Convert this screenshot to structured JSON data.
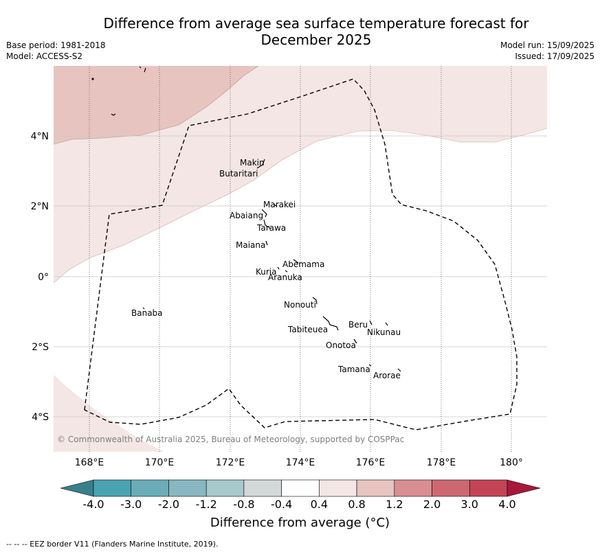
{
  "title_line1": "Difference from average sea surface temperature forecast for",
  "title_line2": "December 2025",
  "meta_left": {
    "base_period": "Base period: 1981-2018",
    "model": "Model: ACCESS-S2"
  },
  "meta_right": {
    "model_run": "Model run: 15/09/2025",
    "issued": "Issued: 17/09/2025"
  },
  "copyright": "© Commonwealth of Australia 2025, Bureau of Meteorology, supported by COSPPac",
  "lat_labels": [
    "4°N",
    "2°N",
    "0°",
    "2°S",
    "4°S"
  ],
  "lon_labels": [
    "168°E",
    "170°E",
    "172°E",
    "174°E",
    "176°E",
    "178°E",
    "180°"
  ],
  "places": [
    {
      "name": "Makin"
    },
    {
      "name": "Butaritari"
    },
    {
      "name": "Marakei"
    },
    {
      "name": "Abaiang"
    },
    {
      "name": "Tarawa"
    },
    {
      "name": "Maiana"
    },
    {
      "name": "Abemama"
    },
    {
      "name": "Kuria"
    },
    {
      "name": "Aranuka"
    },
    {
      "name": "Nonouti"
    },
    {
      "name": "Banaba"
    },
    {
      "name": "Beru"
    },
    {
      "name": "Nikunau"
    },
    {
      "name": "Tabiteuea"
    },
    {
      "name": "Onotoa"
    },
    {
      "name": "Tamana"
    },
    {
      "name": "Arorae"
    }
  ],
  "colorbar": {
    "ticks": [
      "-4.0",
      "-3.0",
      "-2.0",
      "-1.2",
      "-0.8",
      "-0.4",
      "0.4",
      "0.8",
      "1.2",
      "2.0",
      "3.0",
      "4.0"
    ],
    "colors": [
      "#3a7f8c",
      "#4aa3b1",
      "#6aadb9",
      "#88b7c1",
      "#a8c8cc",
      "#d3d9d8",
      "#ffffff",
      "#f4e6e4",
      "#e7c4c0",
      "#d98e92",
      "#cd6872",
      "#c24456",
      "#a8183a"
    ],
    "label": "Difference from average ($^\\circ$C)"
  },
  "cbar_title": "Difference from average (°C)",
  "footer": "--  --  -- EEZ border V11 (Flanders Marine Institute, 2019)."
}
